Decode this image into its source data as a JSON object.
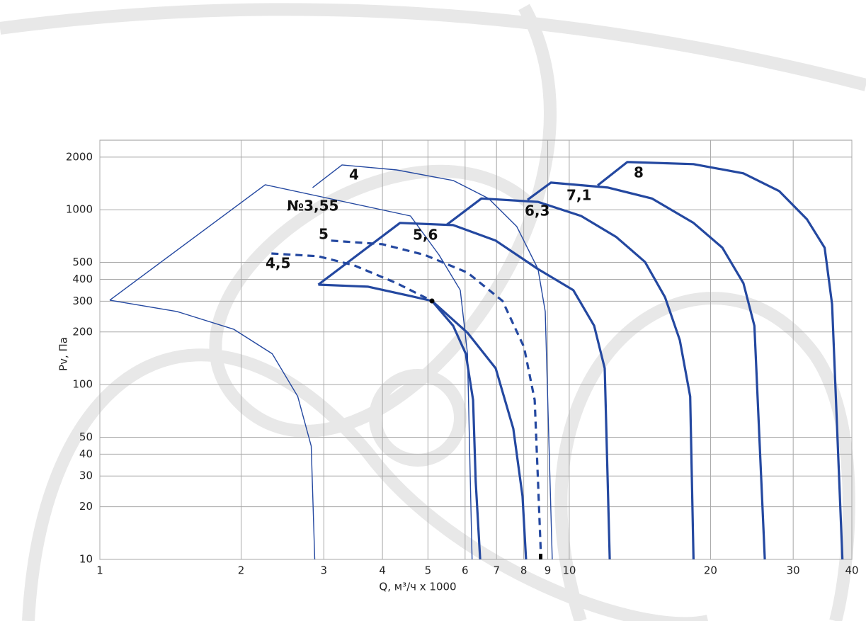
{
  "chart_data": {
    "type": "line",
    "x_label": "Q, м³/ч х 1000",
    "y_label": "Pv, Па",
    "log_x": true,
    "log_y": true,
    "grid": true,
    "color": "#2448a0",
    "xlim": [
      1,
      40
    ],
    "ylim": [
      10,
      2500
    ],
    "xticks": [
      1,
      2,
      3,
      4,
      5,
      6,
      7,
      8,
      9,
      10,
      20,
      30,
      40
    ],
    "yticks": [
      10,
      20,
      30,
      40,
      50,
      100,
      200,
      300,
      400,
      500,
      1000,
      2000
    ],
    "series": [
      {
        "x": [
          1.05,
          1.46,
          1.93,
          2.33,
          2.64,
          2.82,
          2.87
        ],
        "values": [
          304,
          262,
          207,
          150,
          85.5,
          44.5,
          10
        ]
      },
      {
        "name": "№3,55",
        "x": [
          1.05,
          2.25,
          4.59,
          5.28,
          5.86,
          6.07,
          6.21
        ],
        "values": [
          304,
          1390,
          922,
          552,
          347,
          150,
          10
        ]
      },
      {
        "name": "4",
        "x": [
          2.84,
          3.28,
          4.29,
          5.66,
          6.73,
          7.73,
          8.58,
          8.89,
          9.2
        ],
        "values": [
          1340,
          1805,
          1690,
          1470,
          1160,
          802,
          458,
          262,
          10
        ]
      },
      {
        "x": [
          2.92,
          3.73,
          4.59,
          5.1,
          6.07,
          6.97,
          7.6,
          7.95,
          8.09
        ],
        "values": [
          373,
          363,
          321,
          301,
          198,
          124,
          56,
          23,
          10
        ]
      },
      {
        "name": "4,5",
        "linestyle": "dashed",
        "x": [
          2.32,
          2.92,
          3.48,
          4.29,
          5.1
        ],
        "values": [
          562,
          542,
          481,
          380,
          301
        ]
      },
      {
        "x": [
          5.1,
          5.66,
          6.02,
          6.24,
          6.32,
          6.46
        ],
        "values": [
          301,
          217,
          150,
          81.6,
          27.9,
          10
        ]
      },
      {
        "name": "5",
        "linestyle": "dashed",
        "x": [
          3.11,
          4.0,
          4.92,
          6.07,
          7.21,
          8.01,
          8.44,
          8.58,
          8.71
        ],
        "values": [
          666,
          635,
          552,
          437,
          301,
          164,
          81.6,
          27.9,
          10
        ]
      },
      {
        "name": "5,6",
        "x": [
          2.92,
          4.36,
          5.66,
          6.97,
          8.58,
          10.2,
          11.3,
          11.9,
          12.2
        ],
        "values": [
          373,
          841,
          817,
          666,
          458,
          347,
          217,
          124,
          10
        ]
      },
      {
        "name": "6,3",
        "x": [
          5.47,
          6.5,
          8.58,
          10.6,
          12.6,
          14.5,
          16.0,
          17.2,
          18.1,
          18.4
        ],
        "values": [
          817,
          1160,
          1110,
          922,
          698,
          503,
          316,
          180,
          85.5,
          10
        ]
      },
      {
        "name": "7,1",
        "x": [
          8.15,
          9.14,
          12.1,
          15.0,
          18.4,
          21.2,
          23.5,
          24.8,
          26.1
        ],
        "values": [
          1140,
          1430,
          1340,
          1160,
          841,
          606,
          380,
          217,
          10
        ]
      },
      {
        "name": "8",
        "x": [
          11.5,
          13.3,
          18.4,
          23.5,
          28.0,
          32.1,
          35.0,
          36.3,
          38.2
        ],
        "values": [
          1380,
          1875,
          1824,
          1615,
          1280,
          881,
          606,
          288,
          10
        ]
      }
    ]
  }
}
